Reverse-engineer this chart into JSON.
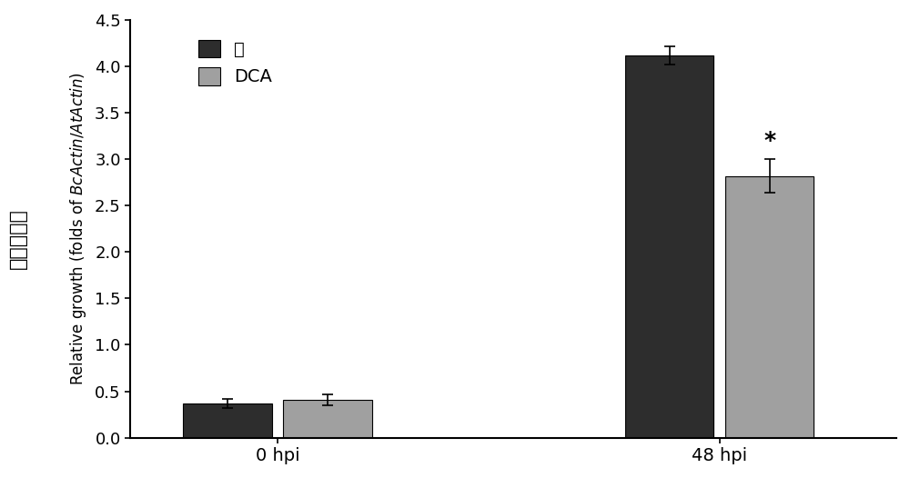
{
  "groups": [
    "0 hpi",
    "48 hpi"
  ],
  "bar_values": {
    "water": [
      0.37,
      4.12
    ],
    "dca": [
      0.41,
      2.82
    ]
  },
  "error_bars": {
    "water": [
      0.05,
      0.1
    ],
    "dca": [
      0.06,
      0.18
    ]
  },
  "bar_colors": {
    "water": "#2d2d2d",
    "dca": "#a0a0a0"
  },
  "bar_width": 0.3,
  "group_positions": [
    1.0,
    2.5
  ],
  "ylim": [
    0,
    4.5
  ],
  "yticks": [
    0.0,
    0.5,
    1.0,
    1.5,
    2.0,
    2.5,
    3.0,
    3.5,
    4.0,
    4.5
  ],
  "ylabel_en": "Relative growth (folds of BcActin/AtActin)",
  "ylabel_cn": "相对生长量",
  "legend_labels": [
    "水",
    "DCA"
  ],
  "significance_label": "*",
  "background_color": "#ffffff"
}
